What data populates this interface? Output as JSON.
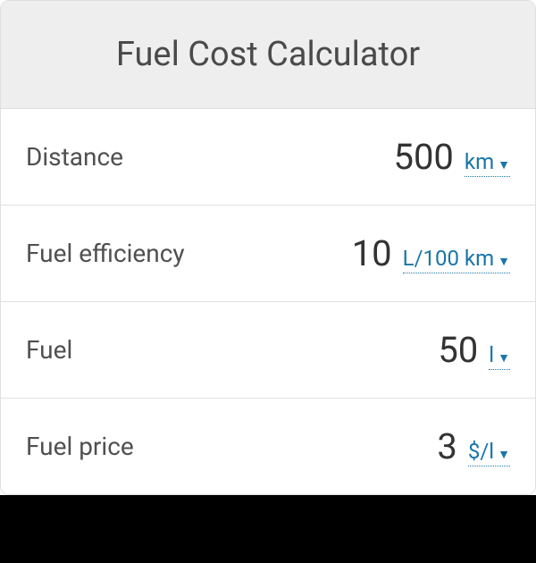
{
  "title": "Fuel Cost Calculator",
  "rows": [
    {
      "label": "Distance",
      "value": "500",
      "unit": "km"
    },
    {
      "label": "Fuel efficiency",
      "value": "10",
      "unit": "L/100 km"
    },
    {
      "label": "Fuel",
      "value": "50",
      "unit": "l"
    },
    {
      "label": "Fuel price",
      "value": "3",
      "unit": "$/l"
    }
  ],
  "colors": {
    "header_bg": "#eeeeee",
    "title_color": "#4a4a4a",
    "label_color": "#505050",
    "value_color": "#333333",
    "link_color": "#1976a8",
    "border_color": "#e0e0e0",
    "footer_bg": "#000000"
  }
}
